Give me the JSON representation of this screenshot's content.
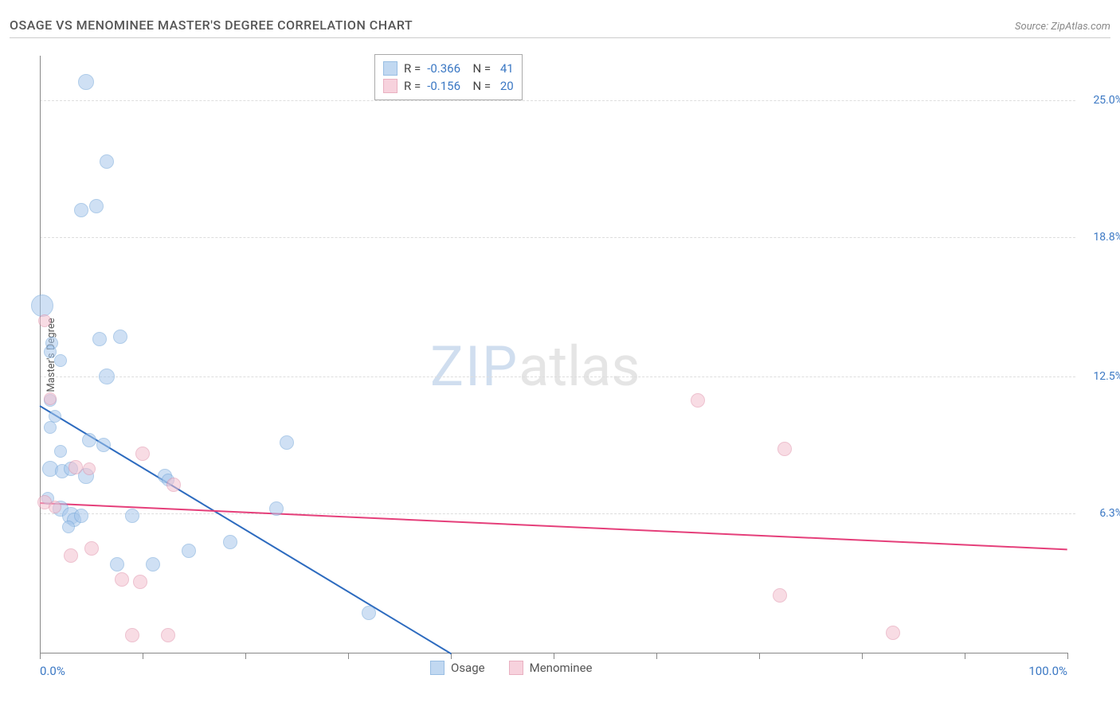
{
  "header": {
    "title": "OSAGE VS MENOMINEE MASTER'S DEGREE CORRELATION CHART",
    "source": "Source: ZipAtlas.com"
  },
  "chart": {
    "type": "scatter",
    "y_axis_title": "Master's Degree",
    "background_color": "#ffffff",
    "grid_color": "#dddddd",
    "axis_color": "#888888",
    "xlim": [
      0,
      100
    ],
    "ylim": [
      0,
      27
    ],
    "x_ticks": [
      0,
      10,
      20,
      30,
      40,
      50,
      60,
      70,
      80,
      90,
      100
    ],
    "x_tick_labels": {
      "0": "0.0%",
      "100": "100.0%"
    },
    "y_ticks": [
      6.3,
      12.5,
      18.8,
      25.0
    ],
    "y_tick_labels": [
      "6.3%",
      "12.5%",
      "18.8%",
      "25.0%"
    ],
    "watermark": {
      "zip": "ZIP",
      "atlas": "atlas"
    },
    "series": [
      {
        "name": "Osage",
        "label": "Osage",
        "fill_color": "#a8c8ec",
        "stroke_color": "#6fa3d8",
        "fill_opacity": 0.55,
        "marker_radius": 9,
        "R": "-0.366",
        "N": "41",
        "trend": {
          "x1": 0,
          "y1": 11.2,
          "x2": 40,
          "y2": 0,
          "color": "#2d6bbf",
          "width": 2
        },
        "points": [
          {
            "x": 4.5,
            "y": 25.8,
            "r": 10
          },
          {
            "x": 6.5,
            "y": 22.2,
            "r": 9
          },
          {
            "x": 4.0,
            "y": 20.0,
            "r": 9
          },
          {
            "x": 5.5,
            "y": 20.2,
            "r": 9
          },
          {
            "x": 0.2,
            "y": 15.7,
            "r": 14
          },
          {
            "x": 1.2,
            "y": 14.0,
            "r": 8
          },
          {
            "x": 1.0,
            "y": 13.6,
            "r": 8
          },
          {
            "x": 5.8,
            "y": 14.2,
            "r": 9
          },
          {
            "x": 7.8,
            "y": 14.3,
            "r": 9
          },
          {
            "x": 2.0,
            "y": 13.2,
            "r": 8
          },
          {
            "x": 6.5,
            "y": 12.5,
            "r": 10
          },
          {
            "x": 1.0,
            "y": 11.4,
            "r": 8
          },
          {
            "x": 1.5,
            "y": 10.7,
            "r": 8
          },
          {
            "x": 1.0,
            "y": 10.2,
            "r": 8
          },
          {
            "x": 4.8,
            "y": 9.6,
            "r": 9
          },
          {
            "x": 2.0,
            "y": 9.1,
            "r": 8
          },
          {
            "x": 6.2,
            "y": 9.4,
            "r": 9
          },
          {
            "x": 24.0,
            "y": 9.5,
            "r": 9
          },
          {
            "x": 1.0,
            "y": 8.3,
            "r": 10
          },
          {
            "x": 2.2,
            "y": 8.2,
            "r": 9
          },
          {
            "x": 3.0,
            "y": 8.3,
            "r": 9
          },
          {
            "x": 4.5,
            "y": 8.0,
            "r": 10
          },
          {
            "x": 12.2,
            "y": 8.0,
            "r": 9
          },
          {
            "x": 12.5,
            "y": 7.8,
            "r": 8
          },
          {
            "x": 0.8,
            "y": 7.0,
            "r": 8
          },
          {
            "x": 2.0,
            "y": 6.5,
            "r": 10
          },
          {
            "x": 3.0,
            "y": 6.2,
            "r": 11
          },
          {
            "x": 3.3,
            "y": 6.0,
            "r": 9
          },
          {
            "x": 4.0,
            "y": 6.2,
            "r": 9
          },
          {
            "x": 2.8,
            "y": 5.7,
            "r": 8
          },
          {
            "x": 9.0,
            "y": 6.2,
            "r": 9
          },
          {
            "x": 23.0,
            "y": 6.5,
            "r": 9
          },
          {
            "x": 7.5,
            "y": 4.0,
            "r": 9
          },
          {
            "x": 11.0,
            "y": 4.0,
            "r": 9
          },
          {
            "x": 14.5,
            "y": 4.6,
            "r": 9
          },
          {
            "x": 18.5,
            "y": 5.0,
            "r": 9
          },
          {
            "x": 32.0,
            "y": 1.8,
            "r": 9
          }
        ]
      },
      {
        "name": "Menominee",
        "label": "Menominee",
        "fill_color": "#f4c0cf",
        "stroke_color": "#e08fa8",
        "fill_opacity": 0.55,
        "marker_radius": 9,
        "R": "-0.156",
        "N": "20",
        "trend": {
          "x1": 0,
          "y1": 6.8,
          "x2": 100,
          "y2": 4.7,
          "color": "#e53f7a",
          "width": 2
        },
        "points": [
          {
            "x": 0.5,
            "y": 15.0,
            "r": 8
          },
          {
            "x": 1.0,
            "y": 11.5,
            "r": 8
          },
          {
            "x": 64.0,
            "y": 11.4,
            "r": 9
          },
          {
            "x": 72.5,
            "y": 9.2,
            "r": 9
          },
          {
            "x": 3.5,
            "y": 8.4,
            "r": 9
          },
          {
            "x": 4.8,
            "y": 8.3,
            "r": 8
          },
          {
            "x": 10.0,
            "y": 9.0,
            "r": 9
          },
          {
            "x": 13.0,
            "y": 7.6,
            "r": 9
          },
          {
            "x": 0.5,
            "y": 6.8,
            "r": 9
          },
          {
            "x": 1.5,
            "y": 6.6,
            "r": 8
          },
          {
            "x": 5.0,
            "y": 4.7,
            "r": 9
          },
          {
            "x": 3.0,
            "y": 4.4,
            "r": 9
          },
          {
            "x": 8.0,
            "y": 3.3,
            "r": 9
          },
          {
            "x": 9.8,
            "y": 3.2,
            "r": 9
          },
          {
            "x": 72.0,
            "y": 2.6,
            "r": 9
          },
          {
            "x": 9.0,
            "y": 0.8,
            "r": 9
          },
          {
            "x": 12.5,
            "y": 0.8,
            "r": 9
          },
          {
            "x": 83.0,
            "y": 0.9,
            "r": 9
          }
        ]
      }
    ],
    "bottom_legend": [
      {
        "label": "Osage",
        "fill": "#a8c8ec",
        "stroke": "#6fa3d8"
      },
      {
        "label": "Menominee",
        "fill": "#f4c0cf",
        "stroke": "#e08fa8"
      }
    ]
  }
}
